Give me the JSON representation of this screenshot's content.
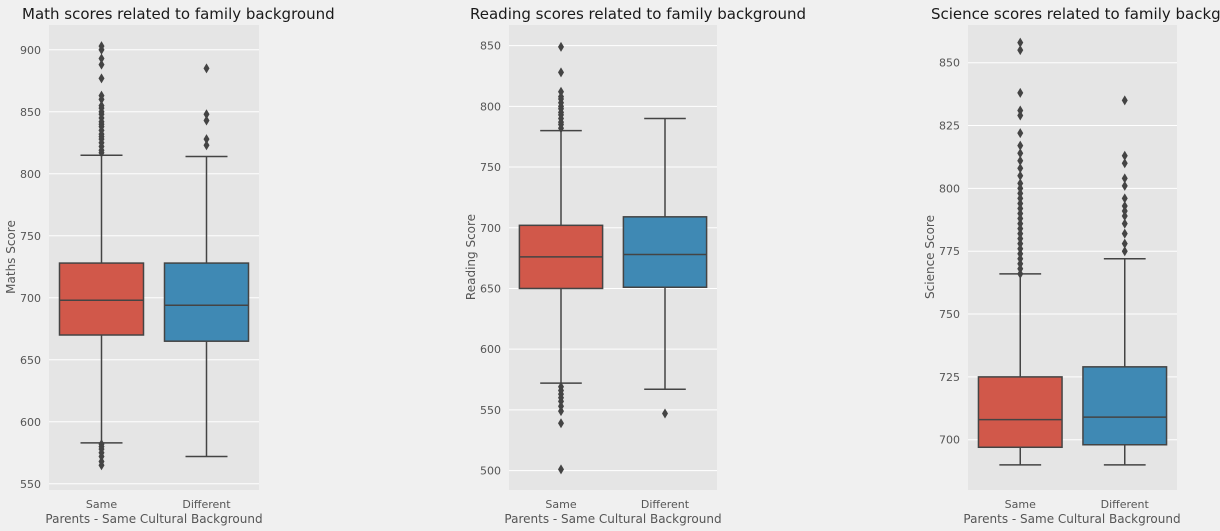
{
  "colors": {
    "figure_bg": "#f0f0f0",
    "axes_bg": "#e5e5e5",
    "grid": "#ffffff",
    "box_same": "#d1584a",
    "box_different": "#3f89b4",
    "line": "#444444",
    "title": "#1a1a1a",
    "tick": "#555555",
    "label": "#555555"
  },
  "chart_data": [
    {
      "type": "box",
      "title": "Math scores related to family background",
      "xlabel": "Parents - Same Cultural Background",
      "ylabel": "Maths Score",
      "categories": [
        "Same",
        "Different"
      ],
      "ylim": [
        545,
        920
      ],
      "yticks": [
        550,
        600,
        650,
        700,
        750,
        800,
        850,
        900
      ],
      "grid": true,
      "boxes": [
        {
          "category": "Same",
          "whisker_low": 583,
          "q1": 670,
          "median": 698,
          "q3": 728,
          "whisker_high": 815,
          "outliers": [
            565,
            568,
            572,
            575,
            578,
            580,
            582,
            817,
            819,
            822,
            825,
            828,
            830,
            832,
            835,
            838,
            840,
            842,
            845,
            848,
            850,
            853,
            855,
            860,
            863,
            877,
            888,
            893,
            900,
            903
          ]
        },
        {
          "category": "Different",
          "whisker_low": 572,
          "q1": 665,
          "median": 694,
          "q3": 728,
          "whisker_high": 814,
          "outliers": [
            823,
            828,
            843,
            848,
            885
          ]
        }
      ]
    },
    {
      "type": "box",
      "title": "Reading scores related to family background",
      "xlabel": "Parents - Same Cultural Background",
      "ylabel": "Reading Score",
      "categories": [
        "Same",
        "Different"
      ],
      "ylim": [
        484,
        867
      ],
      "yticks": [
        500,
        550,
        600,
        650,
        700,
        750,
        800,
        850
      ],
      "grid": true,
      "boxes": [
        {
          "category": "Same",
          "whisker_low": 572,
          "q1": 650,
          "median": 676,
          "q3": 702,
          "whisker_high": 780,
          "outliers": [
            501,
            539,
            549,
            553,
            557,
            560,
            563,
            566,
            569,
            782,
            785,
            787,
            790,
            793,
            795,
            798,
            800,
            803,
            806,
            808,
            812,
            828,
            849
          ]
        },
        {
          "category": "Different",
          "whisker_low": 567,
          "q1": 651,
          "median": 678,
          "q3": 709,
          "whisker_high": 790,
          "outliers": [
            547
          ]
        }
      ]
    },
    {
      "type": "box",
      "title": "Science scores related to family background",
      "xlabel": "Parents - Same Cultural Background",
      "ylabel": "Science Score",
      "categories": [
        "Same",
        "Different"
      ],
      "ylim": [
        680,
        865
      ],
      "yticks": [
        700,
        725,
        750,
        775,
        800,
        825,
        850
      ],
      "grid": true,
      "boxes": [
        {
          "category": "Same",
          "whisker_low": 690,
          "q1": 697,
          "median": 708,
          "q3": 725,
          "whisker_high": 766,
          "outliers": [
            766,
            768,
            770,
            772,
            774,
            776,
            778,
            780,
            782,
            784,
            786,
            788,
            790,
            792,
            794,
            796,
            798,
            800,
            802,
            805,
            808,
            811,
            814,
            817,
            822,
            829,
            831,
            838,
            855,
            858
          ]
        },
        {
          "category": "Different",
          "whisker_low": 690,
          "q1": 698,
          "median": 709,
          "q3": 729,
          "whisker_high": 772,
          "outliers": [
            775,
            778,
            782,
            786,
            789,
            791,
            793,
            796,
            801,
            804,
            810,
            813,
            835
          ]
        }
      ]
    }
  ]
}
